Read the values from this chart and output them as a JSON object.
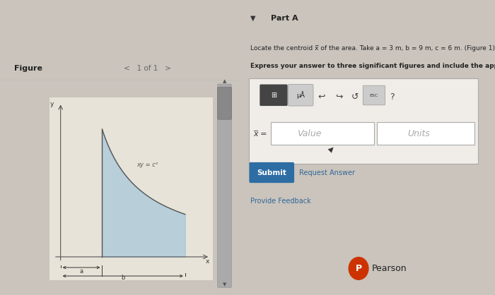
{
  "bg_left": "#e8e3d8",
  "bg_right": "#d5cfc7",
  "bg_overall": "#cac4bc",
  "figure_label": "Figure",
  "nav_text": "1 of 1",
  "part_label": "Part A",
  "problem_line1": "Locate the centroid x̅ of the area. Take a = 3 m, b = 9 m, c = 6 m. (Figure 1)",
  "problem_line2": "Express your answer to three significant figures and include the appropriate units.",
  "curve_label": "xy = c²",
  "dim_a": "a",
  "dim_b": "b",
  "axis_x": "x",
  "axis_y": "y",
  "value_placeholder": "Value",
  "units_placeholder": "Units",
  "xbar_label": "x̅ =",
  "submit_text": "Submit",
  "request_text": "Request Answer",
  "feedback_text": "Provide Feedback",
  "pearson_text": "Pearson",
  "fill_color": "#a8c8d8",
  "curve_color": "#555555",
  "submit_bg": "#2e6da4",
  "submit_color": "#ffffff",
  "scrollbar_color": "#aaaaaa",
  "scrollbar_thumb": "#888888",
  "panel_box_bg": "#f0ece6",
  "toolbar_icon_dark": "#444444",
  "toolbar_icon_light": "#cccccc",
  "input_bg": "#ffffff",
  "input_border": "#aaaaaa",
  "link_color": "#336699",
  "text_dark": "#222222",
  "text_mid": "#444444",
  "pearson_circle": "#cc3300"
}
